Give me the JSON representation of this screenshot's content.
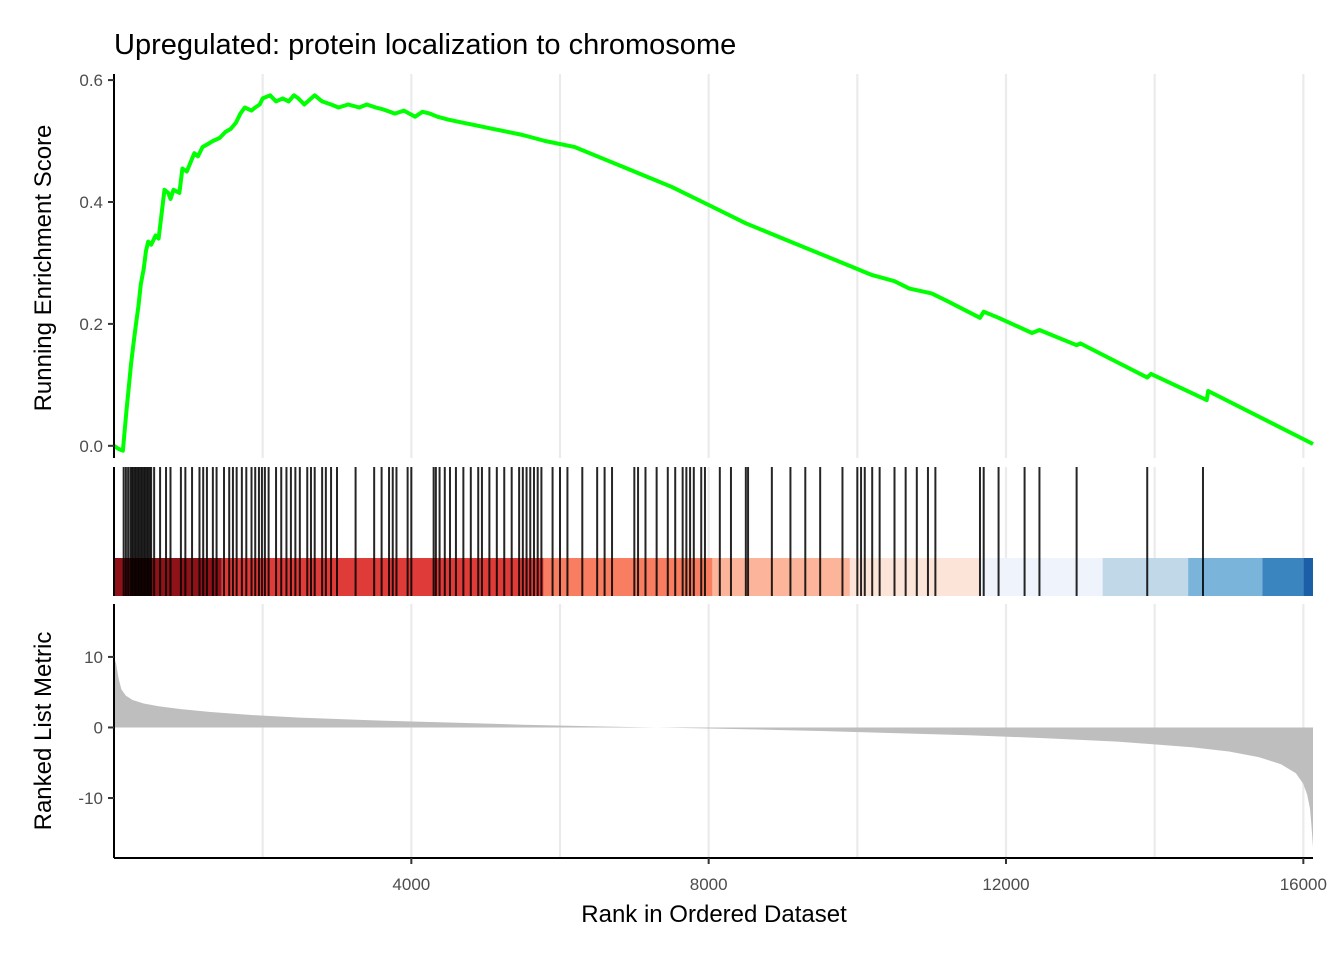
{
  "chart_data": {
    "type": "line",
    "title": "Upregulated: protein localization to chromosome",
    "xlabel": "Rank in Ordered Dataset",
    "xlim": [
      0,
      16130
    ],
    "x_ticks": [
      4000,
      8000,
      12000,
      16000
    ],
    "x_tick_labels": [
      "4000",
      "8000",
      "12000",
      "16000"
    ],
    "grid": true,
    "colors": {
      "line": "#00ff00",
      "hits": "#000000",
      "metric_fill": "#bebebe",
      "gridline": "#ebebeb",
      "axis": "#000000"
    },
    "panels": {
      "running_score": {
        "ylabel": "Running Enrichment Score",
        "ylim": [
          -0.02,
          0.61
        ],
        "y_ticks": [
          0.0,
          0.2,
          0.4,
          0.6
        ],
        "y_tick_labels": [
          "0.0",
          "0.2",
          "0.4",
          "0.6"
        ],
        "series": [
          {
            "x": [
              0,
              60,
              120,
              140,
              170,
              190,
              210,
              230,
              260,
              290,
              330,
              360,
              400,
              430,
              460,
              500,
              560,
              600,
              680,
              730,
              760,
              800,
              880,
              920,
              980,
              1080,
              1130,
              1190,
              1260,
              1330,
              1420,
              1500,
              1570,
              1640,
              1700,
              1760,
              1850,
              1900,
              1960,
              2000,
              2100,
              2180,
              2270,
              2350,
              2420,
              2480,
              2560,
              2700,
              2800,
              2920,
              3020,
              3150,
              3300,
              3400,
              3520,
              3620,
              3780,
              3900,
              4050,
              4150,
              4250,
              4350,
              4500,
              4700,
              4900,
              5100,
              5300,
              5500,
              5800,
              6200,
              6600,
              7000,
              7500,
              8000,
              8500,
              9000,
              9500,
              10000,
              10100,
              10200,
              10500,
              10700,
              11000,
              11200,
              11650,
              11700,
              11900,
              12350,
              12450,
              12950,
              13000,
              13900,
              13950,
              14700,
              14720,
              16130
            ],
            "y": [
              0.0,
              -0.005,
              -0.008,
              0.02,
              0.06,
              0.085,
              0.11,
              0.135,
              0.165,
              0.195,
              0.23,
              0.265,
              0.29,
              0.32,
              0.335,
              0.33,
              0.345,
              0.34,
              0.42,
              0.415,
              0.405,
              0.42,
              0.415,
              0.455,
              0.45,
              0.48,
              0.475,
              0.49,
              0.495,
              0.5,
              0.505,
              0.515,
              0.52,
              0.53,
              0.545,
              0.555,
              0.55,
              0.555,
              0.56,
              0.57,
              0.575,
              0.565,
              0.57,
              0.565,
              0.575,
              0.57,
              0.56,
              0.575,
              0.565,
              0.56,
              0.555,
              0.56,
              0.555,
              0.56,
              0.555,
              0.552,
              0.545,
              0.55,
              0.54,
              0.548,
              0.545,
              0.54,
              0.535,
              0.53,
              0.525,
              0.52,
              0.515,
              0.51,
              0.5,
              0.49,
              0.47,
              0.45,
              0.425,
              0.395,
              0.365,
              0.34,
              0.315,
              0.29,
              0.285,
              0.28,
              0.27,
              0.258,
              0.25,
              0.238,
              0.21,
              0.22,
              0.21,
              0.185,
              0.19,
              0.165,
              0.168,
              0.112,
              0.118,
              0.075,
              0.09,
              0.003
            ]
          }
        ]
      },
      "hits": {
        "positions": [
          130,
          160,
          190,
          220,
          240,
          260,
          280,
          300,
          320,
          340,
          360,
          380,
          400,
          420,
          440,
          460,
          480,
          500,
          540,
          620,
          700,
          760,
          900,
          960,
          1050,
          1150,
          1200,
          1250,
          1330,
          1380,
          1480,
          1550,
          1600,
          1650,
          1720,
          1780,
          1850,
          1900,
          1950,
          1990,
          2030,
          2080,
          2180,
          2250,
          2320,
          2380,
          2440,
          2500,
          2600,
          2650,
          2700,
          2800,
          2850,
          2920,
          3000,
          3250,
          3500,
          3600,
          3700,
          3750,
          3800,
          3950,
          4000,
          4300,
          4330,
          4380,
          4450,
          4520,
          4600,
          4700,
          4800,
          4900,
          4950,
          5050,
          5150,
          5250,
          5350,
          5450,
          5500,
          5550,
          5600,
          5650,
          5700,
          5750,
          5900,
          6000,
          6100,
          6300,
          6500,
          6600,
          6700,
          7000,
          7050,
          7150,
          7300,
          7450,
          7550,
          7650,
          7700,
          7750,
          7800,
          7900,
          7950,
          8150,
          8300,
          8500,
          8530,
          8850,
          9100,
          9300,
          9500,
          9800,
          10000,
          10050,
          10100,
          10200,
          10300,
          10500,
          10650,
          10800,
          10950,
          11050,
          11650,
          11700,
          11900,
          12250,
          12450,
          12950,
          13900,
          14650
        ]
      },
      "rank_color_bar": {
        "stops": [
          0,
          1450,
          5780,
          8050,
          9900,
          11650,
          13300,
          14450,
          15450,
          16000,
          16130
        ],
        "colors": [
          "#8e1217",
          "#df3b38",
          "#f87d61",
          "#fcb59b",
          "#fde4d8",
          "#eef3fc",
          "#c0d8e8",
          "#7ab4da",
          "#3a84c0",
          "#1d5fa6"
        ]
      },
      "ranked_metric": {
        "ylabel": "Ranked List Metric",
        "ylim": [
          -18.5,
          17.5
        ],
        "y_ticks": [
          -10,
          0,
          10
        ],
        "y_tick_labels": [
          "-10",
          "0",
          "10"
        ],
        "series": [
          {
            "x": [
              0,
              30,
              60,
              100,
              160,
              250,
              400,
              600,
              900,
              1300,
              1800,
              2500,
              3500,
              4500,
              5500,
              6500,
              7500,
              8500,
              9500,
              10500,
              11500,
              12500,
              13500,
              14500,
              15000,
              15400,
              15700,
              15900,
              16000,
              16050,
              16090,
              16110,
              16130
            ],
            "y": [
              10.0,
              9.0,
              7.0,
              5.4,
              4.5,
              3.9,
              3.4,
              3.0,
              2.6,
              2.2,
              1.8,
              1.4,
              1.0,
              0.7,
              0.4,
              0.15,
              -0.05,
              -0.25,
              -0.5,
              -0.8,
              -1.1,
              -1.5,
              -2.0,
              -2.8,
              -3.4,
              -4.2,
              -5.2,
              -6.5,
              -8.0,
              -9.5,
              -11.5,
              -14.0,
              -17.0
            ]
          }
        ]
      }
    }
  }
}
